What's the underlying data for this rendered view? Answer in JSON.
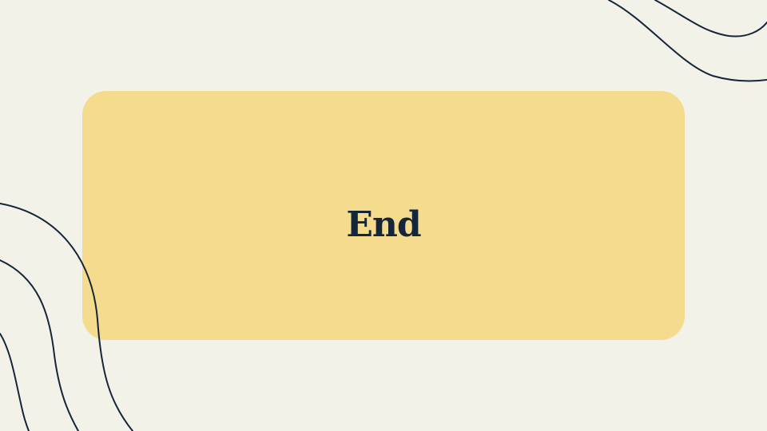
{
  "slide": {
    "title": "End"
  },
  "colors": {
    "background": "#f3f2e8",
    "card": "#f5db8d",
    "ink": "#15263a"
  }
}
